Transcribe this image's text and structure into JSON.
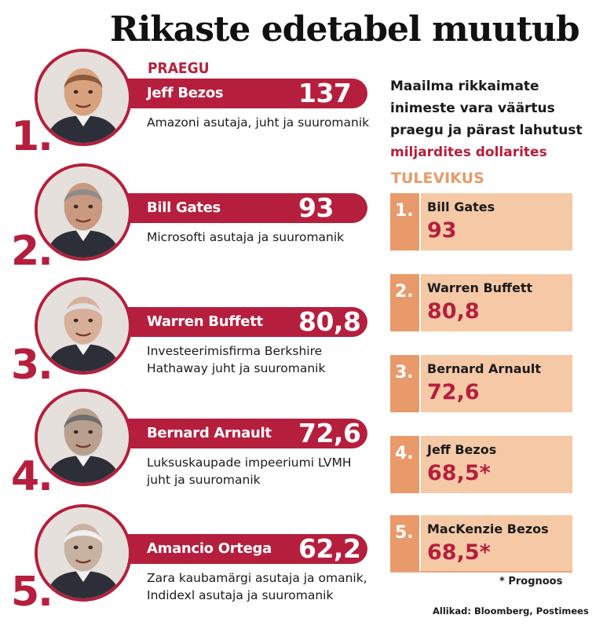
{
  "colors": {
    "accent_red": "#b51f3d",
    "future_orange": "#e99a6a",
    "future_body": "#f5c9a6"
  },
  "title": "Rikaste edetabel muutub",
  "now_label": "PRAEGU",
  "intro": {
    "line1": "Maailma rikkaimate",
    "line2": "inimeste vara väärtus",
    "line3": "praegu ja pärast lahutust",
    "unit": "miljardites dollarites"
  },
  "now": [
    {
      "rank": "1.",
      "name": "Jeff Bezos",
      "value": "137",
      "desc": "Amazoni asutaja, juht ja suuromanik",
      "photo": "portrait-icon"
    },
    {
      "rank": "2.",
      "name": "Bill Gates",
      "value": "93",
      "desc": "Microsofti asutaja ja suuromanik",
      "photo": "portrait-icon"
    },
    {
      "rank": "3.",
      "name": "Warren Buffett",
      "value": "80,8",
      "desc": "Investeerimisfirma Berkshire Hathaway juht ja suuromanik",
      "photo": "portrait-icon"
    },
    {
      "rank": "4.",
      "name": "Bernard Arnault",
      "value": "72,6",
      "desc": "Luksuskaupade impeeriumi LVMH juht ja suuromanik",
      "photo": "portrait-icon"
    },
    {
      "rank": "5.",
      "name": "Amancio Ortega",
      "value": "62,2",
      "desc": "Zara kaubamärgi asutaja ja omanik, Indidexl asutaja ja suuromanik",
      "photo": "portrait-icon"
    }
  ],
  "future_label": "TULEVIKUS",
  "future": [
    {
      "rank": "1.",
      "name": "Bill Gates",
      "value": "93"
    },
    {
      "rank": "2.",
      "name": "Warren Buffett",
      "value": "80,8"
    },
    {
      "rank": "3.",
      "name": "Bernard Arnault",
      "value": "72,6"
    },
    {
      "rank": "4.",
      "name": "Jeff Bezos",
      "value": "68,5*"
    },
    {
      "rank": "5.",
      "name": "MacKenzie Bezos",
      "value": "68,5*"
    }
  ],
  "footnote": "* Prognoos",
  "source": "Allikad: Bloomberg, Postimees"
}
